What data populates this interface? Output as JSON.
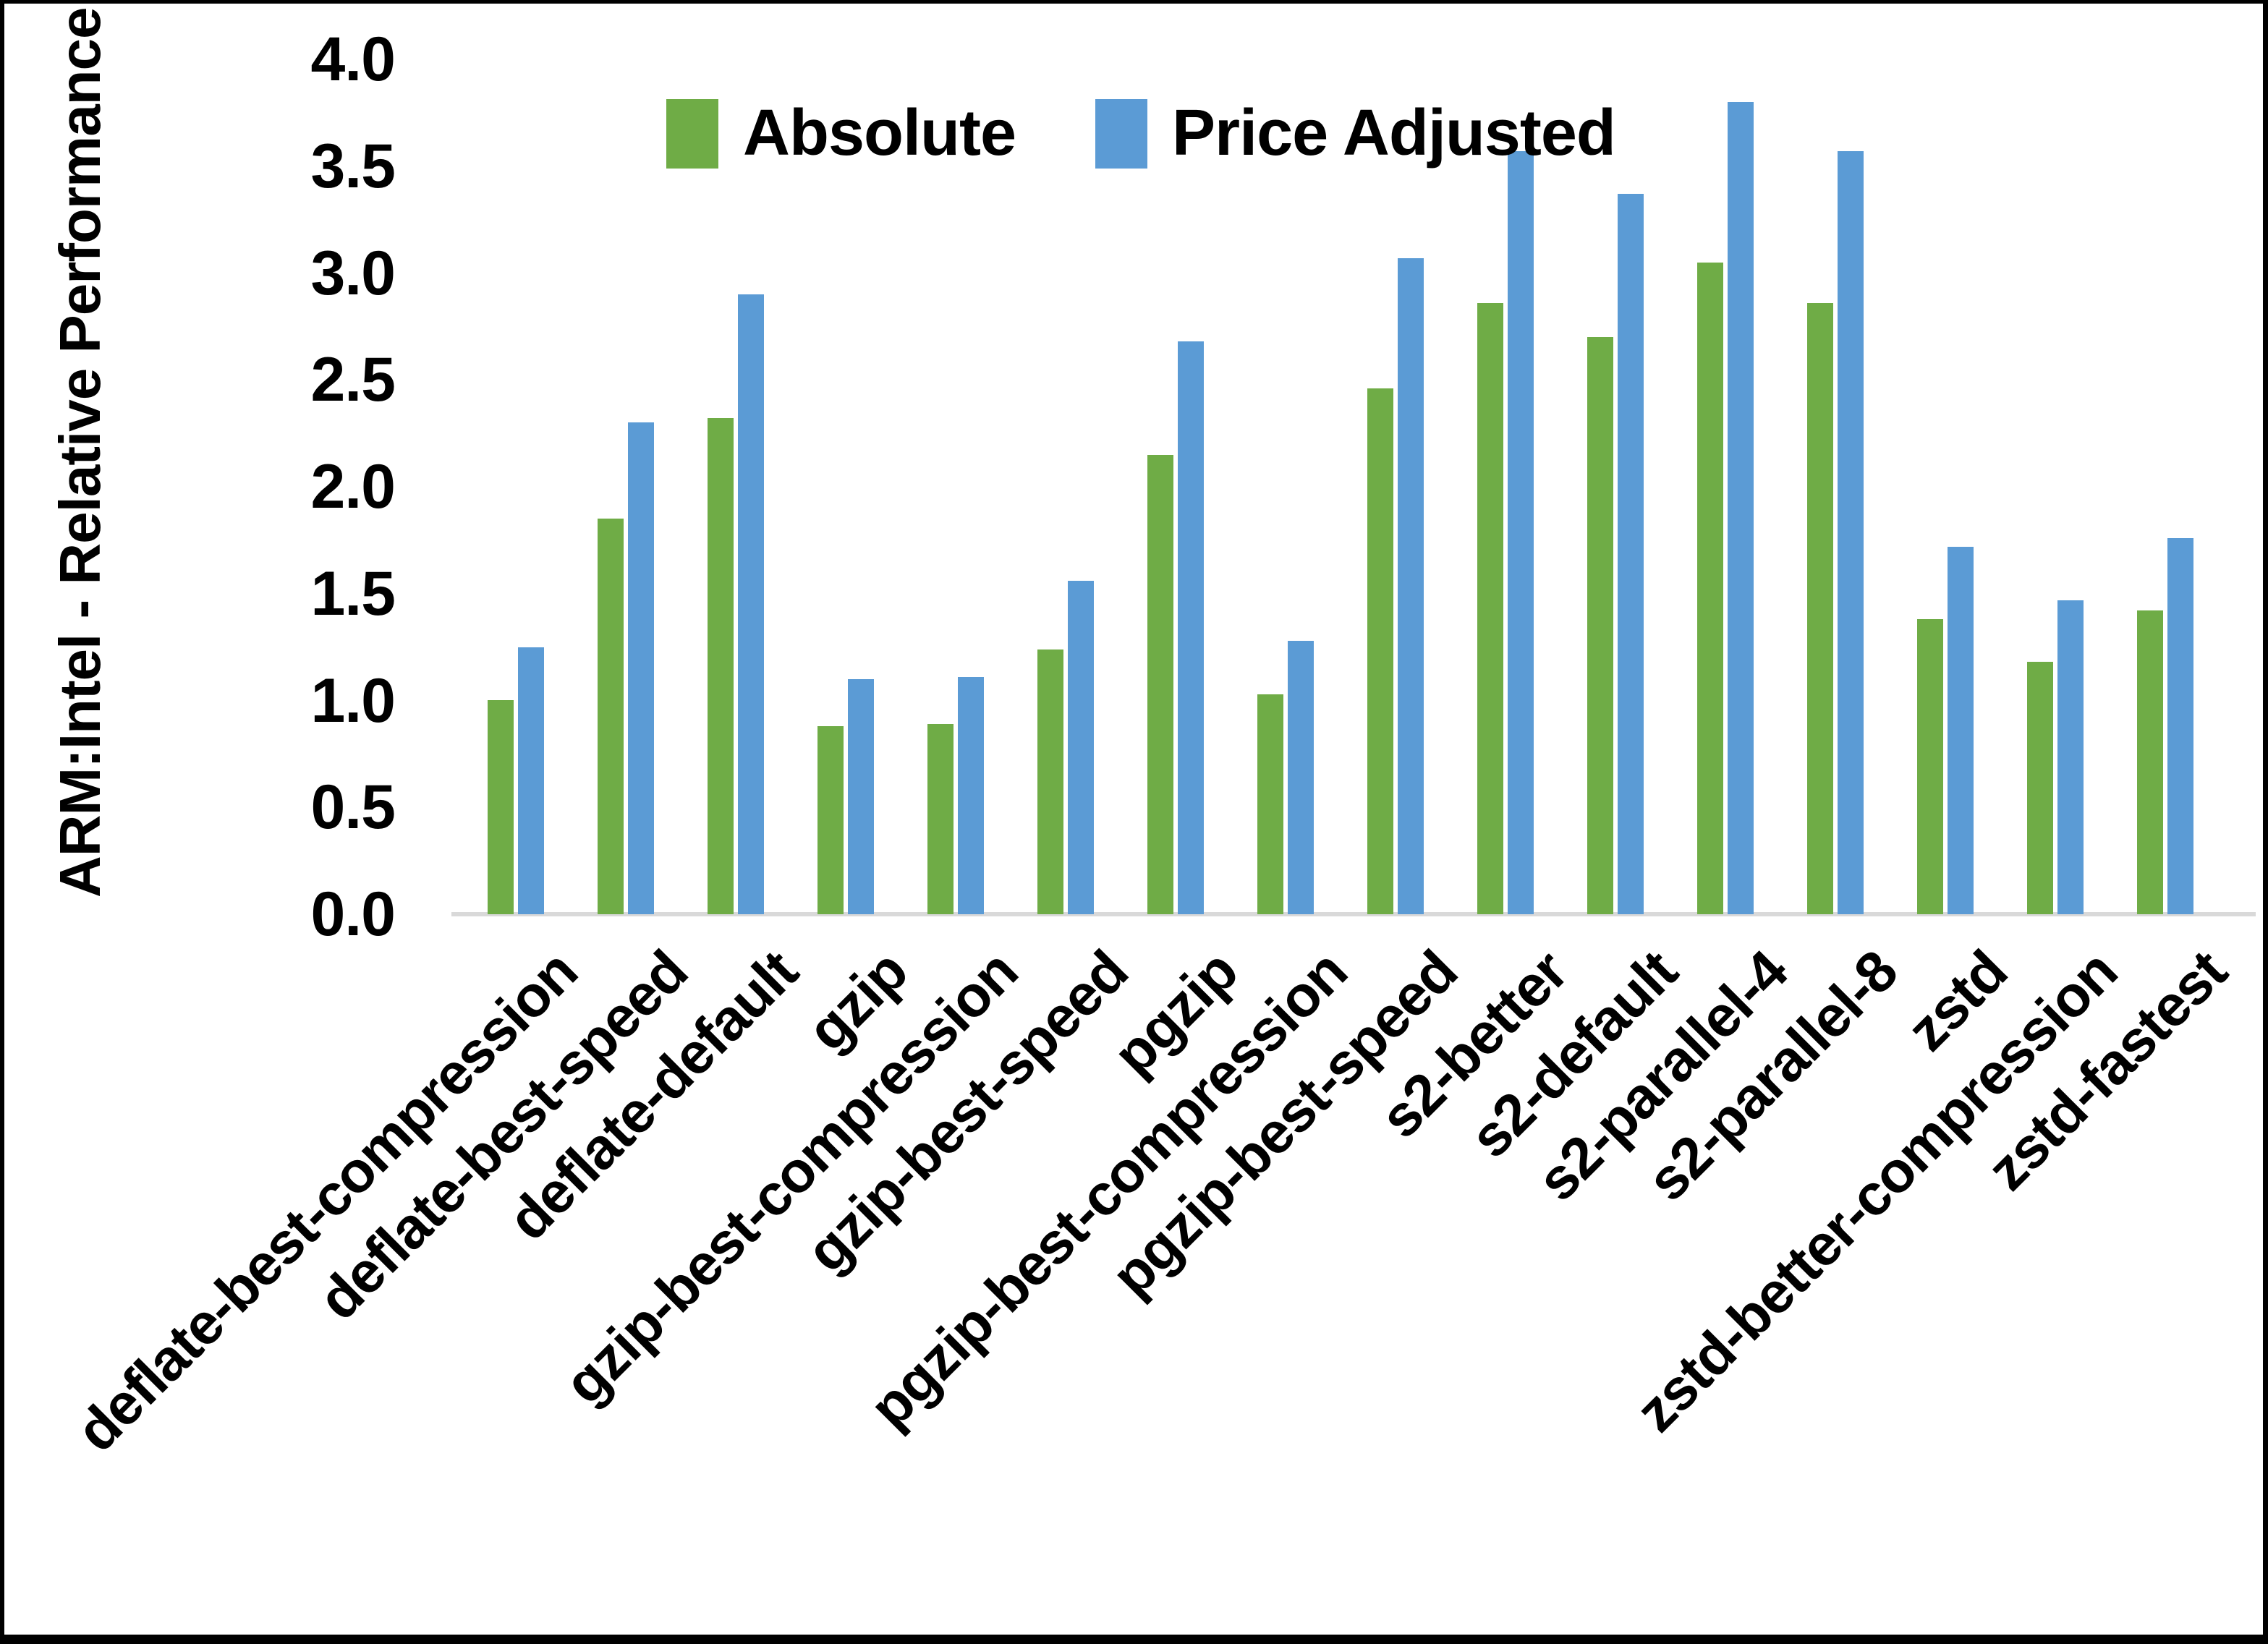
{
  "chart_data": {
    "type": "bar",
    "title": "",
    "xlabel": "",
    "ylabel": "ARM:Intel - Relative Performance",
    "ylim": [
      0.0,
      4.0
    ],
    "ytick_step": 0.5,
    "ytick_labels": [
      "0.0",
      "0.5",
      "1.0",
      "1.5",
      "2.0",
      "2.5",
      "3.0",
      "3.5",
      "4.0"
    ],
    "grid": false,
    "legend_position": "top-center",
    "axis_line_color": "#D9D9D9",
    "categories": [
      "deflate-best-compression",
      "deflate-best-speed",
      "deflate-default",
      "gzip",
      "gzip-best-compression",
      "gzip-best-speed",
      "pgzip",
      "pgzip-best-compression",
      "pgzip-best-speed",
      "s2-better",
      "s2-default",
      "s2-parallel-4",
      "s2-parallel-8",
      "zstd",
      "zstd-better-compression",
      "zstd-fastest"
    ],
    "series": [
      {
        "name": "Absolute",
        "color": "#6FAC46",
        "values": [
          1.0,
          1.85,
          2.32,
          0.88,
          0.89,
          1.24,
          2.15,
          1.03,
          2.46,
          2.86,
          2.7,
          3.05,
          2.86,
          1.38,
          1.18,
          1.42
        ]
      },
      {
        "name": "Price Adjusted",
        "color": "#5B9BD5",
        "values": [
          1.25,
          2.3,
          2.9,
          1.1,
          1.11,
          1.56,
          2.68,
          1.28,
          3.07,
          3.57,
          3.37,
          3.8,
          3.57,
          1.72,
          1.47,
          1.76
        ]
      }
    ]
  }
}
